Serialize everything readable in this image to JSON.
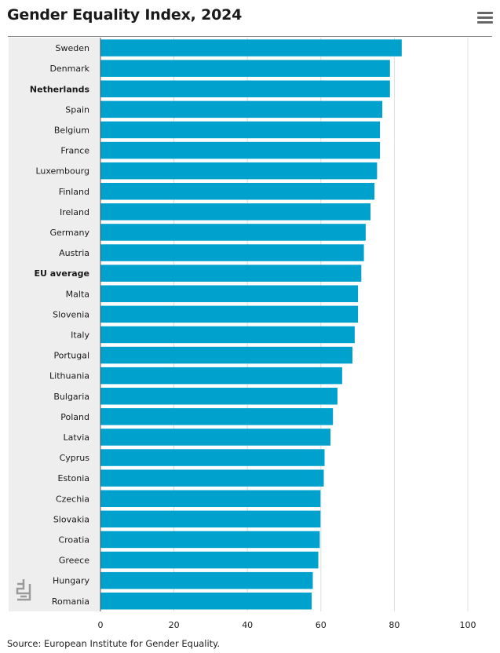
{
  "header": {
    "title": "Gender Equality Index, 2024",
    "menu_icon": "hamburger-menu-icon"
  },
  "footer": {
    "source": "Source: European Institute for Gender Equality."
  },
  "logo": {
    "icon": "cbs-logo-icon"
  },
  "colors": {
    "bar": "#00a1cd",
    "band": "#eeeeee",
    "grid": "#dddddd",
    "text": "#1a1a1a"
  },
  "chart_data": {
    "type": "bar",
    "orientation": "horizontal",
    "title": "Gender Equality Index, 2024",
    "categories": [
      "Sweden",
      "Denmark",
      "Netherlands",
      "Spain",
      "Belgium",
      "France",
      "Luxembourg",
      "Finland",
      "Ireland",
      "Germany",
      "Austria",
      "EU average",
      "Malta",
      "Slovenia",
      "Italy",
      "Portugal",
      "Lithuania",
      "Bulgaria",
      "Poland",
      "Latvia",
      "Cyprus",
      "Estonia",
      "Czechia",
      "Slovakia",
      "Croatia",
      "Greece",
      "Hungary",
      "Romania"
    ],
    "values": [
      82.0,
      78.8,
      78.8,
      76.7,
      76.1,
      76.1,
      75.3,
      74.6,
      73.5,
      72.2,
      71.7,
      71.0,
      70.1,
      70.1,
      69.2,
      68.6,
      65.8,
      64.5,
      63.3,
      62.6,
      61.0,
      60.8,
      59.9,
      59.9,
      59.7,
      59.3,
      57.8,
      57.5
    ],
    "highlighted": [
      "Netherlands",
      "EU average"
    ],
    "xlim": [
      0,
      100
    ],
    "xticks": [
      0,
      20,
      40,
      60,
      80,
      100
    ],
    "grid": true,
    "legend": "none"
  }
}
